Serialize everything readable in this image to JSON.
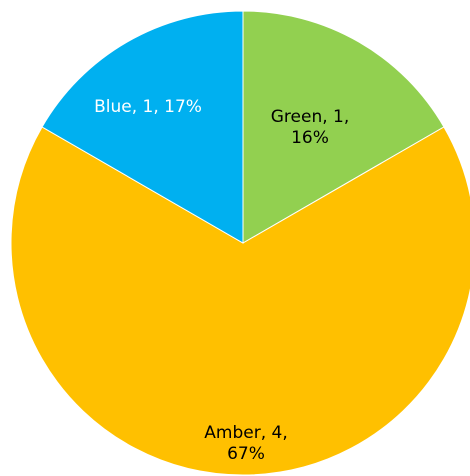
{
  "chart_data": {
    "type": "pie",
    "slices": [
      {
        "name": "Green",
        "value": 1,
        "percent_label": "16%",
        "color": "#92D050",
        "label_lines": [
          "Green, 1,",
          "16%"
        ]
      },
      {
        "name": "Amber",
        "value": 4,
        "percent_label": "67%",
        "color": "#FFC000",
        "label_lines": [
          "Amber, 4,",
          "67%"
        ]
      },
      {
        "name": "Blue",
        "value": 1,
        "percent_label": "17%",
        "color": "#00B0F0",
        "label_lines": [
          "Blue, 1, 17%"
        ]
      }
    ],
    "start_angle": "12 o'clock",
    "direction": "clockwise",
    "legend": "none",
    "title": ""
  }
}
